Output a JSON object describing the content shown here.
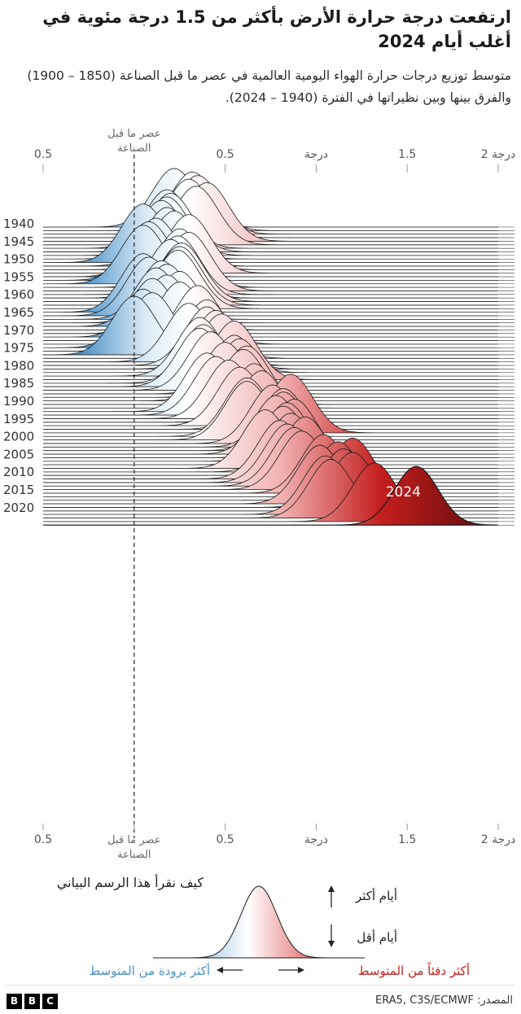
{
  "title": "ارتفعت درجة حرارة الأرض بأكثر من 1.5 درجة مئوية في أغلب أيام 2024",
  "subtitle": "متوسط توزيع درجات حرارة الهواء اليومية العالمية في عصر ما قبل الصناعة (1850 – 1900) والفرق بينها وبين نظيراتها في الفترة (1940 – 2024).",
  "source": "المصدر: ERA5, C3S/ECMWF",
  "brand_letters": [
    "B",
    "B",
    "C"
  ],
  "colors": {
    "cold": "#4a90c8",
    "warm": "#c41e1e",
    "hot": "#5a0a0a",
    "text": "#222222",
    "grid": "#333333"
  },
  "chart_data": {
    "type": "ridgeline",
    "x_ticks": [
      {
        "value": -0.5,
        "label": "0.5"
      },
      {
        "value": 0,
        "label": "عصر ما قبل الصناعة",
        "dashed": true
      },
      {
        "value": 0.5,
        "label": "0.5"
      },
      {
        "value": 1.0,
        "label": "درجة"
      },
      {
        "value": 1.5,
        "label": "1.5"
      },
      {
        "value": 2.0,
        "label": "2 درجة"
      }
    ],
    "xlim": [
      -0.5,
      2.0
    ],
    "y_ticks": [
      "1940",
      "1945",
      "1950",
      "1955",
      "1960",
      "1965",
      "1970",
      "1975",
      "1980",
      "1985",
      "1990",
      "1995",
      "2000",
      "2005",
      "2010",
      "2015",
      "2020"
    ],
    "highlight_label": "2024",
    "years": [
      1940,
      1941,
      1942,
      1943,
      1944,
      1945,
      1946,
      1947,
      1948,
      1949,
      1950,
      1951,
      1952,
      1953,
      1954,
      1955,
      1956,
      1957,
      1958,
      1959,
      1960,
      1961,
      1962,
      1963,
      1964,
      1965,
      1966,
      1967,
      1968,
      1969,
      1970,
      1971,
      1972,
      1973,
      1974,
      1975,
      1976,
      1977,
      1978,
      1979,
      1980,
      1981,
      1982,
      1983,
      1984,
      1985,
      1986,
      1987,
      1988,
      1989,
      1990,
      1991,
      1992,
      1993,
      1994,
      1995,
      1996,
      1997,
      1998,
      1999,
      2000,
      2001,
      2002,
      2003,
      2004,
      2005,
      2006,
      2007,
      2008,
      2009,
      2010,
      2011,
      2012,
      2013,
      2014,
      2015,
      2016,
      2017,
      2018,
      2019,
      2020,
      2021,
      2022,
      2023,
      2024
    ],
    "means": [
      0.22,
      0.32,
      0.35,
      0.3,
      0.4,
      0.34,
      0.18,
      0.2,
      0.18,
      0.15,
      0.05,
      0.18,
      0.22,
      0.3,
      0.12,
      0.08,
      0.05,
      0.25,
      0.3,
      0.24,
      0.2,
      0.26,
      0.25,
      0.24,
      0.05,
      0.08,
      0.15,
      0.18,
      0.12,
      0.25,
      0.18,
      0.1,
      0.25,
      0.35,
      0.05,
      0.1,
      0.0,
      0.4,
      0.3,
      0.4,
      0.45,
      0.48,
      0.36,
      0.55,
      0.38,
      0.36,
      0.42,
      0.55,
      0.58,
      0.5,
      0.62,
      0.6,
      0.4,
      0.45,
      0.52,
      0.66,
      0.58,
      0.7,
      0.86,
      0.62,
      0.62,
      0.76,
      0.82,
      0.82,
      0.78,
      0.88,
      0.84,
      0.82,
      0.72,
      0.86,
      0.94,
      0.8,
      0.84,
      0.88,
      0.92,
      1.04,
      1.2,
      1.12,
      1.02,
      1.15,
      1.2,
      1.05,
      1.08,
      1.32,
      1.55
    ],
    "legend": {
      "title": "كيف نقرأ هذا الرسم البياني",
      "more_days": "أيام أكثر",
      "fewer_days": "أيام أقل",
      "cooler": "أكثر برودة من المتوسط",
      "warmer": "أكثر دفئاً من المتوسط"
    }
  }
}
